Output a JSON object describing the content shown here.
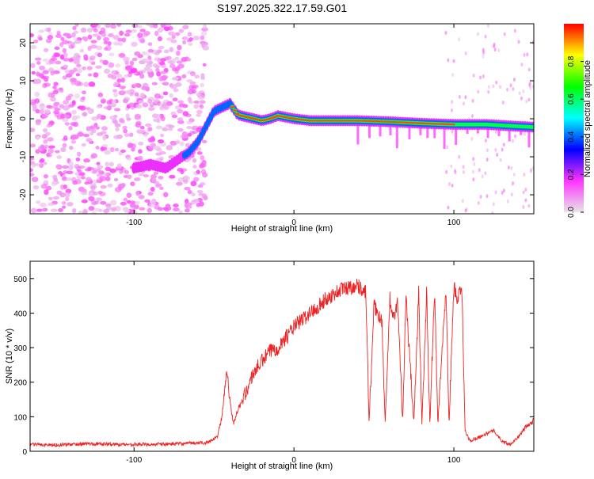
{
  "title": "S197.2025.322.17.59.G01",
  "colorbar": {
    "label": "Normalized spectral amplitude",
    "ticks": [
      "0.0",
      "0.2",
      "0.4",
      "0.6",
      "0.8"
    ],
    "tick_values": [
      0.0,
      0.2,
      0.4,
      0.6,
      0.8
    ],
    "range": [
      0,
      1
    ],
    "colors": [
      "#e6e6e6",
      "#ff33ff",
      "#0000ff",
      "#00ffff",
      "#00ff00",
      "#ffff00",
      "#ff0000"
    ]
  },
  "chart_data": [
    {
      "type": "heatmap",
      "title": "S197.2025.322.17.59.G01",
      "xlabel": "Height of straight line (km)",
      "ylabel": "Frequency (Hz)",
      "xlim": [
        -165,
        150
      ],
      "ylim": [
        -25,
        25
      ],
      "xticks": [
        -100,
        0,
        100
      ],
      "xtick_labels": [
        "-100",
        "0",
        "100"
      ],
      "yticks": [
        -20,
        -10,
        0,
        10,
        20
      ],
      "ytick_labels": [
        "-20",
        "-10",
        "0",
        "10",
        "20"
      ],
      "ridge": {
        "x": [
          -100,
          -90,
          -80,
          -70,
          -66,
          -60,
          -55,
          -50,
          -45,
          -40,
          -35,
          -30,
          -25,
          -20,
          -15,
          -10,
          0,
          10,
          20,
          40,
          60,
          80,
          100,
          120,
          140,
          150
        ],
        "y": [
          -13,
          -12,
          -13,
          -10,
          -9,
          -6,
          -2,
          2,
          3,
          4,
          1,
          0.5,
          0,
          -0.5,
          0,
          0.8,
          0,
          -0.5,
          -0.5,
          -0.5,
          -0.8,
          -1.2,
          -1.5,
          -1.5,
          -2,
          -2.2
        ]
      },
      "noise_region": {
        "x": [
          -165,
          -55
        ],
        "y": [
          -25,
          25
        ]
      }
    },
    {
      "type": "line",
      "xlabel": "Height of straight line (km)",
      "ylabel": "SNR (10 * v/v)",
      "xlim": [
        -165,
        150
      ],
      "ylim": [
        0,
        550
      ],
      "xticks": [
        -100,
        0,
        100
      ],
      "xtick_labels": [
        "-100",
        "0",
        "100"
      ],
      "yticks": [
        0,
        100,
        200,
        300,
        400,
        500
      ],
      "ytick_labels": [
        "0",
        "100",
        "200",
        "300",
        "400",
        "500"
      ],
      "series": [
        {
          "name": "SNR",
          "color": "#ee2222",
          "x": [
            -165,
            -150,
            -130,
            -110,
            -90,
            -70,
            -55,
            -48,
            -45,
            -42,
            -40,
            -38,
            -35,
            -30,
            -25,
            -20,
            -15,
            -10,
            -5,
            0,
            10,
            20,
            30,
            40,
            45,
            47,
            50,
            55,
            57,
            60,
            62,
            65,
            68,
            70,
            75,
            78,
            80,
            83,
            85,
            88,
            90,
            95,
            97,
            100,
            102,
            105,
            107,
            110,
            120,
            125,
            130,
            135,
            140,
            145,
            148,
            150
          ],
          "y": [
            20,
            18,
            22,
            20,
            20,
            22,
            25,
            40,
            100,
            240,
            150,
            80,
            120,
            170,
            230,
            260,
            290,
            300,
            330,
            360,
            400,
            440,
            470,
            480,
            460,
            80,
            420,
            380,
            80,
            440,
            380,
            430,
            80,
            450,
            80,
            460,
            80,
            460,
            80,
            470,
            80,
            470,
            80,
            480,
            440,
            470,
            60,
            30,
            50,
            60,
            30,
            20,
            40,
            70,
            80,
            90
          ]
        }
      ]
    }
  ]
}
